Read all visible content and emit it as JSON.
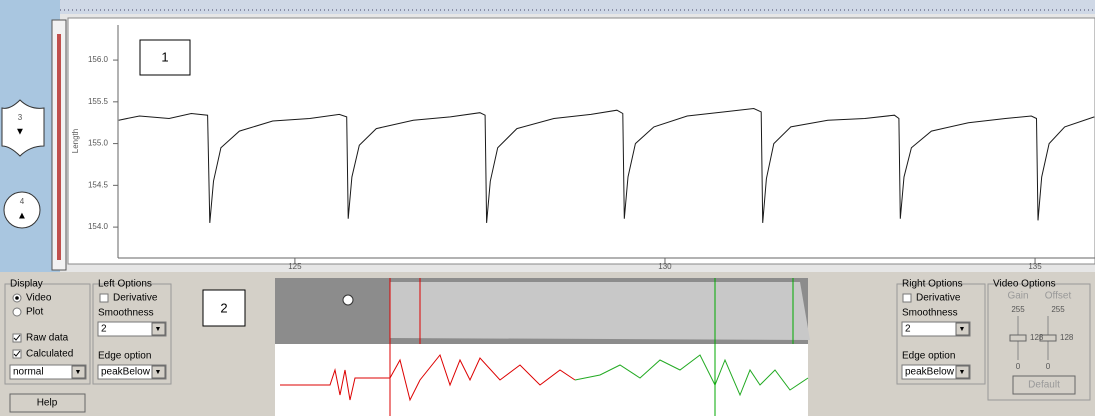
{
  "annotations": [
    "1",
    "2"
  ],
  "side_slider": {
    "labels": [
      "3",
      "4"
    ]
  },
  "chart_data": {
    "type": "line",
    "y_label": "Length",
    "x": [
      122.62,
      122.9,
      123.3,
      123.6,
      123.82,
      123.85,
      123.9,
      124.0,
      124.25,
      124.7,
      125.2,
      125.6,
      125.7,
      125.72,
      125.77,
      125.87,
      126.1,
      126.6,
      127.1,
      127.5,
      127.57,
      127.59,
      127.64,
      127.74,
      128.0,
      128.5,
      129.0,
      129.35,
      129.43,
      129.45,
      129.5,
      129.6,
      129.85,
      130.3,
      130.8,
      131.2,
      131.3,
      131.32,
      131.37,
      131.47,
      131.7,
      132.2,
      132.7,
      133.1,
      133.16,
      133.18,
      133.23,
      133.33,
      133.6,
      134.1,
      134.6,
      134.95,
      135.02,
      135.04,
      135.09,
      135.19,
      135.4,
      135.8
    ],
    "series": [
      {
        "color": "#1a1a1a",
        "values": [
          155.28,
          155.33,
          155.3,
          155.36,
          155.34,
          154.05,
          154.55,
          154.95,
          155.15,
          155.27,
          155.3,
          155.35,
          155.32,
          154.1,
          154.6,
          154.98,
          155.18,
          155.28,
          155.32,
          155.37,
          155.34,
          154.05,
          154.55,
          154.95,
          155.18,
          155.3,
          155.35,
          155.4,
          155.36,
          154.1,
          154.6,
          155.0,
          155.2,
          155.33,
          155.38,
          155.42,
          155.38,
          154.05,
          154.58,
          155.0,
          155.2,
          155.28,
          155.3,
          155.34,
          155.3,
          154.1,
          154.6,
          154.95,
          155.15,
          155.25,
          155.3,
          155.33,
          155.3,
          154.08,
          154.6,
          155.0,
          155.2,
          155.32
        ]
      }
    ],
    "xlim": [
      122.61,
      135.81
    ],
    "ylim": [
      153.63,
      156.42
    ],
    "xticks": [
      125,
      130,
      135
    ],
    "yticks": [
      {
        "value": 154,
        "label": "154.0"
      },
      154.5,
      {
        "value": 155,
        "label": "155.0"
      },
      155.5,
      {
        "value": 156,
        "label": "156.0"
      }
    ],
    "grid": false
  },
  "display": {
    "title": "Display",
    "options": [
      "Video",
      "Plot"
    ],
    "checks": [
      "Raw data",
      "Calculated"
    ],
    "mode": "normal"
  },
  "left_options": {
    "title": "Left Options",
    "derivative": "Derivative",
    "smoothness_label": "Smoothness",
    "smoothness": "2",
    "edge_label": "Edge option",
    "edge": "peakBelow"
  },
  "help": "Help",
  "right_options": {
    "title": "Right Options",
    "derivative": "Derivative",
    "smoothness_label": "Smoothness",
    "smoothness": "2",
    "edge_label": "Edge option",
    "edge": "peakBelow"
  },
  "video_options": {
    "title": "Video Options",
    "gain": "Gain",
    "offset": "Offset",
    "gain_max": "255",
    "offset_max": "255",
    "gain_value": "128",
    "offset_value": "128",
    "gain_min": "0",
    "offset_min": "0",
    "default": "Default"
  }
}
